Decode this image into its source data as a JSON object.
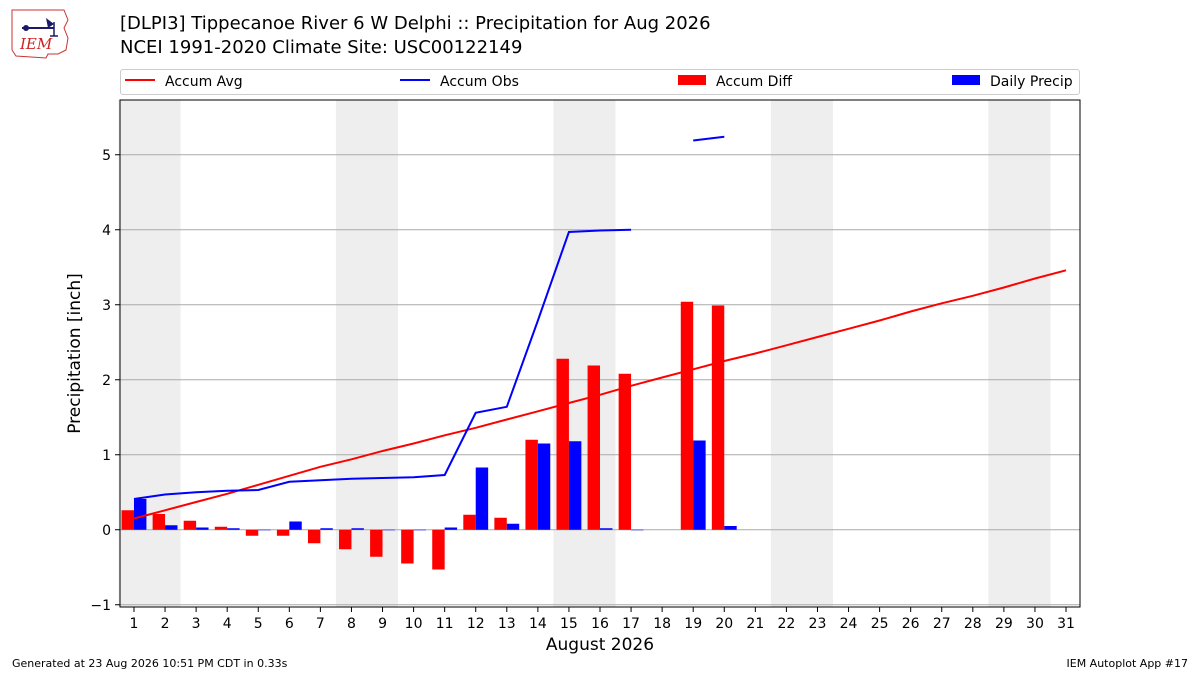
{
  "header": {
    "logo_text": "IEM",
    "title_line1": "[DLPI3] Tippecanoe River 6 W Delphi :: Precipitation for Aug 2026",
    "title_line2": "NCEI 1991-2020 Climate Site: USC00122149"
  },
  "footer": {
    "generated": "Generated at 23 Aug 2026 10:51 PM CDT in 0.33s",
    "app": "IEM Autoplot App #17"
  },
  "colors": {
    "accum_avg": "#ff0000",
    "accum_obs": "#0000ff",
    "accum_diff": "#ff0000",
    "daily_precip": "#0000ff",
    "weekend_shade": "#eeeeee",
    "grid": "#aaaaaa"
  },
  "chart_data": {
    "type": "bar",
    "title": "[DLPI3] Tippecanoe River 6 W Delphi :: Precipitation for Aug 2026",
    "xlabel": "August 2026",
    "ylabel": "Precipitation [inch]",
    "xlim": [
      0.55,
      31.45
    ],
    "ylim": [
      -1.03,
      5.73
    ],
    "grid": true,
    "legend_position": "top",
    "legend": [
      "Accum Avg",
      "Accum Obs",
      "Accum Diff",
      "Daily Precip"
    ],
    "x_ticks": [
      1,
      2,
      3,
      4,
      5,
      6,
      7,
      8,
      9,
      10,
      11,
      12,
      13,
      14,
      15,
      16,
      17,
      18,
      19,
      20,
      21,
      22,
      23,
      24,
      25,
      26,
      27,
      28,
      29,
      30,
      31
    ],
    "y_ticks": [
      -1,
      0,
      1,
      2,
      3,
      4,
      5
    ],
    "weekend_bands": [
      [
        0.5,
        2.5
      ],
      [
        7.5,
        9.5
      ],
      [
        14.5,
        16.5
      ],
      [
        21.5,
        23.5
      ],
      [
        28.5,
        30.5
      ]
    ],
    "series": [
      {
        "name": "Accum Avg",
        "kind": "line",
        "x": [
          1,
          2,
          3,
          4,
          5,
          6,
          7,
          8,
          9,
          10,
          11,
          12,
          13,
          14,
          15,
          16,
          17,
          18,
          19,
          20,
          21,
          22,
          23,
          24,
          25,
          26,
          27,
          28,
          29,
          30,
          31
        ],
        "values": [
          0.15,
          0.26,
          0.37,
          0.48,
          0.6,
          0.72,
          0.84,
          0.94,
          1.05,
          1.15,
          1.26,
          1.36,
          1.47,
          1.58,
          1.69,
          1.8,
          1.92,
          2.03,
          2.14,
          2.25,
          2.35,
          2.46,
          2.57,
          2.68,
          2.79,
          2.91,
          3.02,
          3.12,
          3.23,
          3.35,
          3.46
        ]
      },
      {
        "name": "Accum Obs",
        "kind": "line",
        "x": [
          1,
          2,
          3,
          4,
          5,
          6,
          7,
          8,
          9,
          10,
          11,
          12,
          13,
          14,
          15,
          16,
          17,
          18,
          19,
          20
        ],
        "values": [
          0.41,
          0.47,
          0.5,
          0.52,
          0.53,
          0.64,
          0.66,
          0.68,
          0.69,
          0.7,
          0.73,
          1.56,
          1.64,
          2.79,
          3.97,
          3.99,
          4.0,
          null,
          5.19,
          5.24
        ]
      },
      {
        "name": "Accum Diff",
        "kind": "bar",
        "x": [
          1,
          2,
          3,
          4,
          5,
          6,
          7,
          8,
          9,
          10,
          11,
          12,
          13,
          14,
          15,
          16,
          17,
          18,
          19,
          20
        ],
        "values": [
          0.26,
          0.21,
          0.12,
          0.04,
          -0.08,
          -0.08,
          -0.18,
          -0.26,
          -0.36,
          -0.45,
          -0.53,
          0.2,
          0.16,
          1.2,
          2.28,
          2.19,
          2.08,
          null,
          3.04,
          2.99
        ]
      },
      {
        "name": "Daily Precip",
        "kind": "bar",
        "x": [
          1,
          2,
          3,
          4,
          5,
          6,
          7,
          8,
          9,
          10,
          11,
          12,
          13,
          14,
          15,
          16,
          17,
          18,
          19,
          20
        ],
        "values": [
          0.41,
          0.06,
          0.03,
          0.02,
          0.0,
          0.11,
          0.02,
          0.02,
          0.0,
          0.0,
          0.03,
          0.83,
          0.08,
          1.15,
          1.18,
          0.02,
          0.0,
          null,
          1.19,
          0.05
        ]
      }
    ]
  }
}
